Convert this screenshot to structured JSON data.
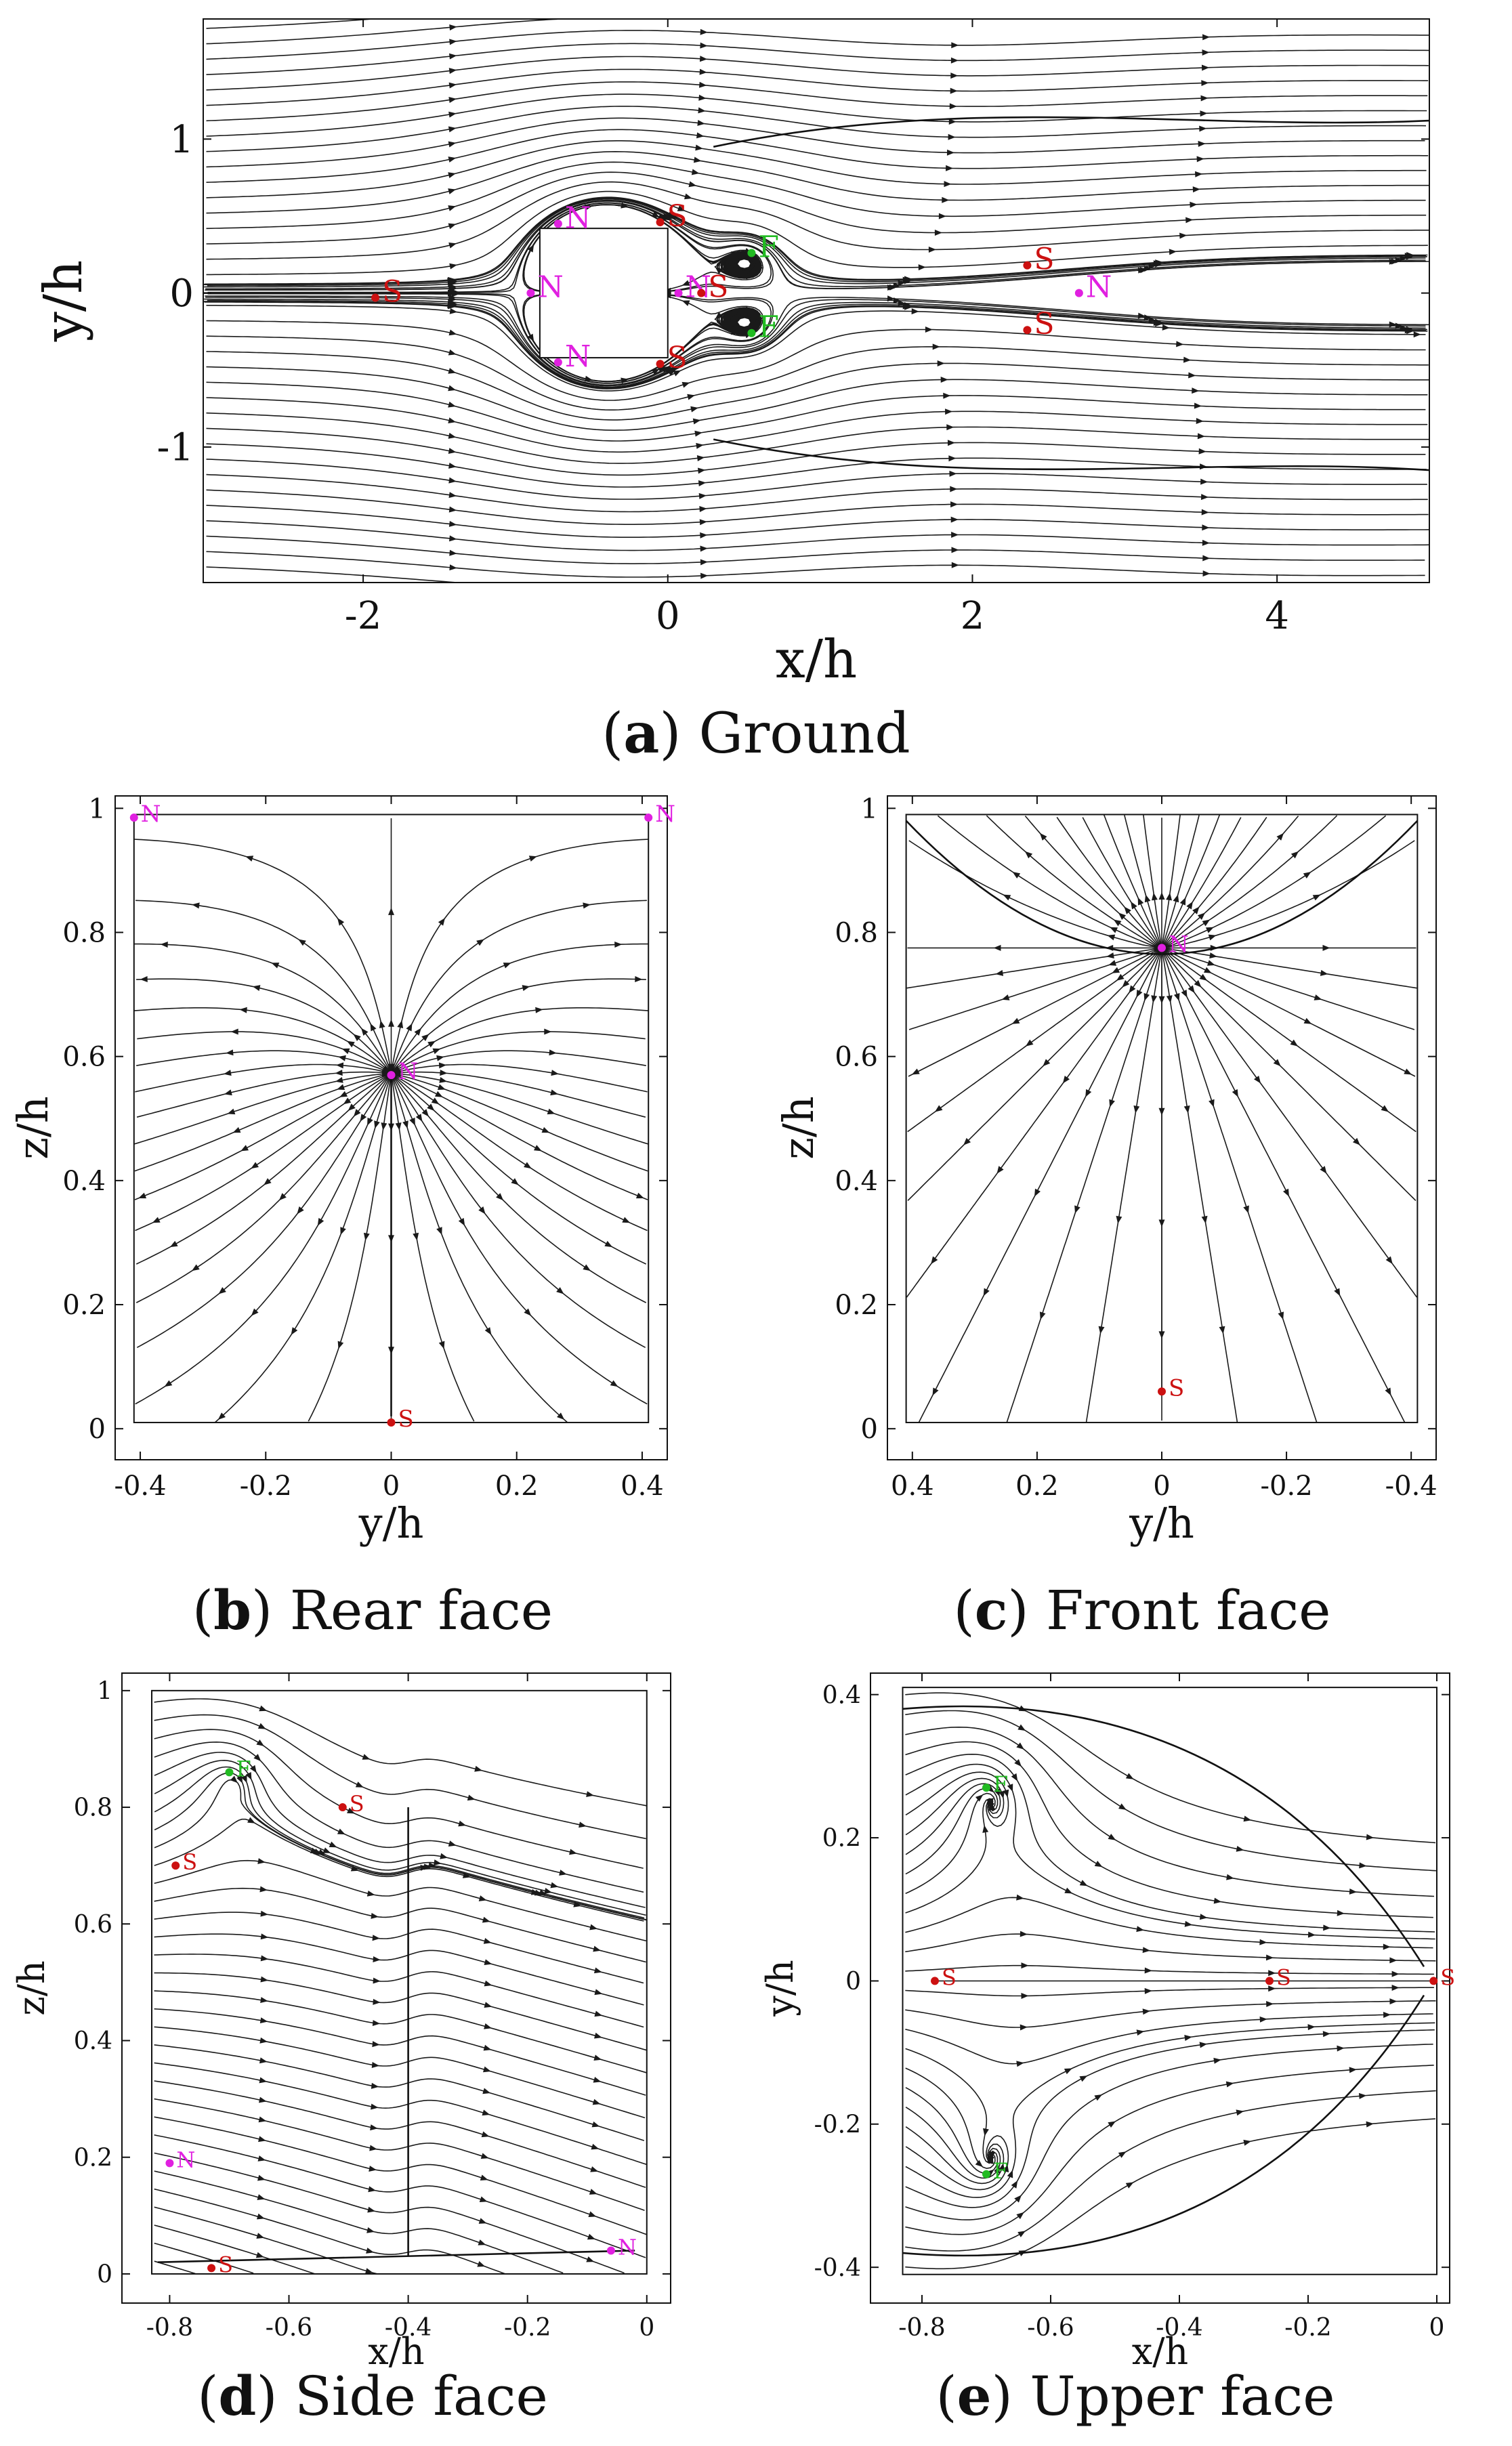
{
  "colors": {
    "node": "#e020e0",
    "saddle": "#cc1111",
    "focus": "#22bb22",
    "line": "#1a1a1a"
  },
  "panels": {
    "a": {
      "caption_letter": "a",
      "caption_text": "Ground",
      "xlabel": "x/h",
      "ylabel": "y/h",
      "x_ticks": [
        "-2",
        "0",
        "2",
        "4"
      ],
      "y_ticks": [
        "1",
        "0",
        "-1"
      ],
      "xlim": [
        -3.05,
        5.0
      ],
      "ylim": [
        -1.88,
        1.78
      ],
      "points": [
        {
          "label": "S",
          "type": "saddle",
          "x": -1.92,
          "y": -0.03
        },
        {
          "label": "N",
          "type": "node",
          "x": -0.9,
          "y": 0.0
        },
        {
          "label": "N",
          "type": "node",
          "x": -0.72,
          "y": 0.45
        },
        {
          "label": "N",
          "type": "node",
          "x": -0.72,
          "y": -0.45
        },
        {
          "label": "S",
          "type": "saddle",
          "x": -0.05,
          "y": 0.46
        },
        {
          "label": "S",
          "type": "saddle",
          "x": -0.05,
          "y": -0.46
        },
        {
          "label": "N",
          "type": "node",
          "x": 0.07,
          "y": 0.0
        },
        {
          "label": "S",
          "type": "saddle",
          "x": 0.22,
          "y": 0.0
        },
        {
          "label": "F",
          "type": "focus",
          "x": 0.55,
          "y": 0.26
        },
        {
          "label": "F",
          "type": "focus",
          "x": 0.55,
          "y": -0.26
        },
        {
          "label": "S",
          "type": "saddle",
          "x": 2.36,
          "y": 0.18
        },
        {
          "label": "S",
          "type": "saddle",
          "x": 2.36,
          "y": -0.24
        },
        {
          "label": "N",
          "type": "node",
          "x": 2.7,
          "y": 0.0
        }
      ]
    },
    "b": {
      "caption_letter": "b",
      "caption_text": "Rear face",
      "xlabel": "y/h",
      "ylabel": "z/h",
      "x_ticks": [
        "-0.4",
        "-0.2",
        "0",
        "0.2",
        "0.4"
      ],
      "y_ticks": [
        "0",
        "0.2",
        "0.4",
        "0.6",
        "0.8",
        "1"
      ],
      "xlim": [
        -0.44,
        0.44
      ],
      "ylim": [
        -0.05,
        1.02
      ],
      "points": [
        {
          "label": "N",
          "type": "node",
          "x": -0.41,
          "y": 0.985
        },
        {
          "label": "N",
          "type": "node",
          "x": 0.41,
          "y": 0.985
        },
        {
          "label": "N",
          "type": "node",
          "x": 0.0,
          "y": 0.57
        },
        {
          "label": "S",
          "type": "saddle",
          "x": 0.0,
          "y": 0.01
        }
      ]
    },
    "c": {
      "caption_letter": "c",
      "caption_text": "Front face",
      "xlabel": "y/h",
      "ylabel": "z/h",
      "x_ticks": [
        "0.4",
        "0.2",
        "0",
        "-0.2",
        "-0.4"
      ],
      "y_ticks": [
        "0",
        "0.2",
        "0.4",
        "0.6",
        "0.8",
        "1"
      ],
      "xlim": [
        0.44,
        -0.44
      ],
      "ylim": [
        -0.05,
        1.02
      ],
      "points": [
        {
          "label": "N",
          "type": "node",
          "x": 0.0,
          "y": 0.775
        },
        {
          "label": "S",
          "type": "saddle",
          "x": 0.0,
          "y": 0.06
        }
      ]
    },
    "d": {
      "caption_letter": "d",
      "caption_text": "Side face",
      "xlabel": "x/h",
      "ylabel": "z/h",
      "x_ticks": [
        "-0.8",
        "-0.6",
        "-0.4",
        "-0.2",
        "0"
      ],
      "y_ticks": [
        "0",
        "0.2",
        "0.4",
        "0.6",
        "0.8",
        "1"
      ],
      "xlim": [
        -0.88,
        0.04
      ],
      "ylim": [
        -0.05,
        1.03
      ],
      "points": [
        {
          "label": "F",
          "type": "focus",
          "x": -0.7,
          "y": 0.86
        },
        {
          "label": "S",
          "type": "saddle",
          "x": -0.51,
          "y": 0.8
        },
        {
          "label": "S",
          "type": "saddle",
          "x": -0.79,
          "y": 0.7
        },
        {
          "label": "N",
          "type": "node",
          "x": -0.8,
          "y": 0.19
        },
        {
          "label": "S",
          "type": "saddle",
          "x": -0.73,
          "y": 0.01
        },
        {
          "label": "N",
          "type": "node",
          "x": -0.06,
          "y": 0.04
        }
      ]
    },
    "e": {
      "caption_letter": "e",
      "caption_text": "Upper face",
      "xlabel": "x/h",
      "ylabel": "y/h",
      "x_ticks": [
        "-0.8",
        "-0.6",
        "-0.4",
        "-0.2",
        "0"
      ],
      "y_ticks": [
        "0.4",
        "0.2",
        "0",
        "-0.2",
        "-0.4"
      ],
      "xlim": [
        -0.88,
        0.02
      ],
      "ylim": [
        -0.45,
        0.43
      ],
      "points": [
        {
          "label": "F",
          "type": "focus",
          "x": -0.7,
          "y": 0.27
        },
        {
          "label": "S",
          "type": "saddle",
          "x": -0.78,
          "y": 0.0
        },
        {
          "label": "S",
          "type": "saddle",
          "x": -0.26,
          "y": 0.0
        },
        {
          "label": "S",
          "type": "saddle",
          "x": -0.005,
          "y": 0.0
        },
        {
          "label": "F",
          "type": "focus",
          "x": -0.7,
          "y": -0.27
        }
      ]
    }
  }
}
